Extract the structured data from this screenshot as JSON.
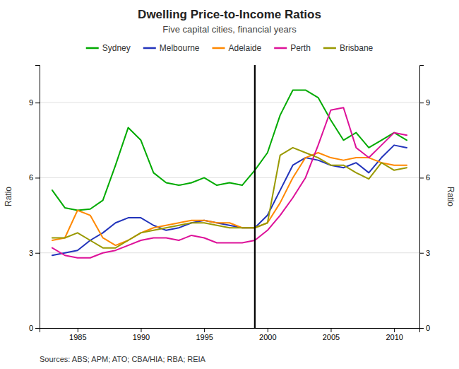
{
  "chart_data": {
    "type": "line",
    "title": "Dwelling Price-to-Income Ratios",
    "subtitle": "Five capital cities, financial years",
    "y_label": "Ratio",
    "y2_label": "Ratio",
    "source": "Sources: ABS; APM; ATO; CBA/HIA; RBA; REIA",
    "x": [
      1983,
      1984,
      1985,
      1986,
      1987,
      1988,
      1989,
      1990,
      1991,
      1992,
      1993,
      1994,
      1995,
      1996,
      1997,
      1998,
      1999,
      2000,
      2001,
      2002,
      2003,
      2004,
      2005,
      2006,
      2007,
      2008,
      2009,
      2010,
      2011
    ],
    "series": [
      {
        "name": "Sydney",
        "color": "#00aa00",
        "values": [
          5.5,
          4.8,
          4.7,
          4.75,
          5.1,
          6.5,
          8.0,
          7.5,
          6.2,
          5.8,
          5.7,
          5.8,
          6.0,
          5.7,
          5.8,
          5.7,
          6.3,
          7.0,
          8.5,
          9.5,
          9.5,
          9.2,
          8.3,
          7.5,
          7.8,
          7.2,
          7.5,
          7.8,
          7.5
        ]
      },
      {
        "name": "Melbourne",
        "color": "#2233bb",
        "values": [
          2.9,
          3.0,
          3.1,
          3.5,
          3.8,
          4.2,
          4.4,
          4.4,
          4.1,
          3.9,
          4.0,
          4.2,
          4.3,
          4.2,
          4.1,
          4.0,
          4.0,
          4.5,
          5.5,
          6.5,
          6.8,
          6.7,
          6.5,
          6.4,
          6.6,
          6.2,
          6.8,
          7.3,
          7.2
        ]
      },
      {
        "name": "Adelaide",
        "color": "#ff8800",
        "values": [
          3.5,
          3.6,
          4.7,
          4.5,
          3.6,
          3.3,
          3.5,
          3.8,
          4.0,
          4.1,
          4.2,
          4.3,
          4.3,
          4.2,
          4.2,
          4.0,
          4.0,
          4.2,
          5.0,
          6.0,
          6.8,
          7.0,
          6.8,
          6.7,
          6.8,
          6.8,
          6.6,
          6.5,
          6.5
        ]
      },
      {
        "name": "Perth",
        "color": "#dd1199",
        "values": [
          3.2,
          2.9,
          2.8,
          2.8,
          3.0,
          3.1,
          3.3,
          3.5,
          3.6,
          3.6,
          3.5,
          3.7,
          3.6,
          3.4,
          3.4,
          3.4,
          3.5,
          3.9,
          4.5,
          5.2,
          6.0,
          7.3,
          8.7,
          8.8,
          7.2,
          6.8,
          7.3,
          7.8,
          7.7
        ]
      },
      {
        "name": "Brisbane",
        "color": "#999900",
        "values": [
          3.6,
          3.6,
          3.8,
          3.5,
          3.2,
          3.2,
          3.5,
          3.8,
          3.9,
          4.0,
          4.1,
          4.2,
          4.2,
          4.1,
          4.0,
          4.0,
          4.0,
          4.2,
          6.9,
          7.2,
          7.0,
          6.8,
          6.5,
          6.5,
          6.2,
          5.95,
          6.6,
          6.3,
          6.4
        ]
      }
    ],
    "reference_line_x": 1999,
    "xlim": [
      1982,
      2012
    ],
    "xticks": [
      1985,
      1990,
      1995,
      2000,
      2005,
      2010
    ],
    "ylim": [
      0,
      10.5
    ],
    "yticks": [
      0,
      3,
      6,
      9
    ],
    "y2lim": [
      0,
      10.5
    ],
    "y2ticks": [
      0,
      3,
      6,
      9
    ],
    "grid": true,
    "legend": "top"
  }
}
